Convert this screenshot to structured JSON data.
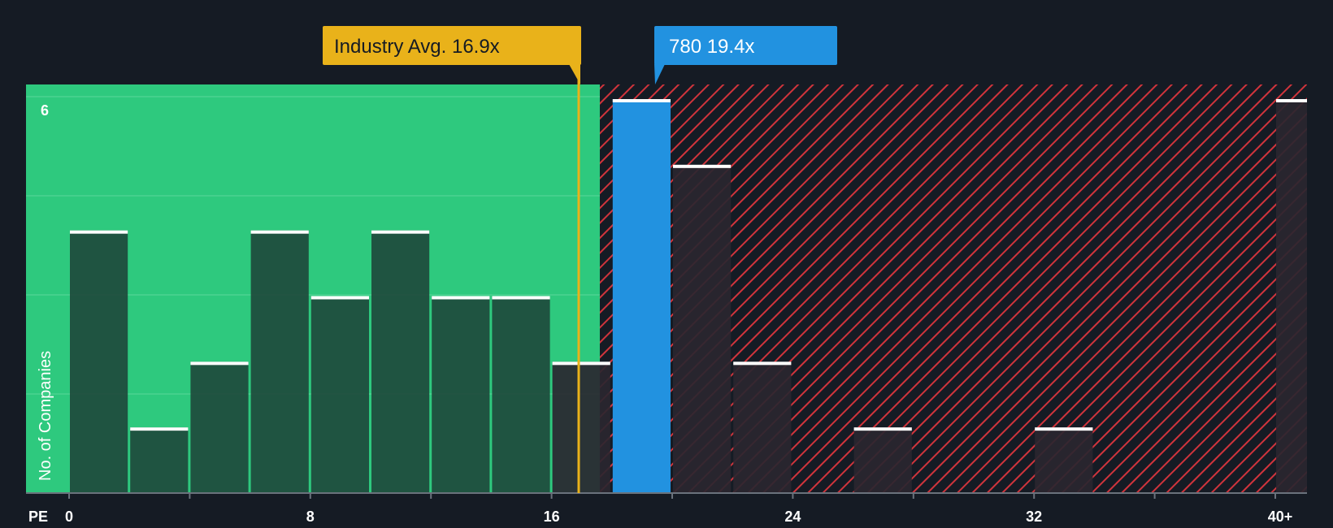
{
  "chart_data": {
    "type": "bar",
    "title": "",
    "xlabel": "PE",
    "ylabel": "No. of Companies",
    "x_tick_labels": [
      "0",
      "8",
      "16",
      "24",
      "32",
      "40+"
    ],
    "x_tick_values": [
      0,
      8,
      16,
      24,
      32,
      40
    ],
    "y_tick_labels": [
      "6"
    ],
    "y_tick_values": [
      6
    ],
    "xlim": [
      0,
      41
    ],
    "ylim": [
      0,
      6.2
    ],
    "bin_width": 2,
    "bars": [
      {
        "x": 0,
        "count": 4
      },
      {
        "x": 2,
        "count": 1
      },
      {
        "x": 4,
        "count": 2
      },
      {
        "x": 6,
        "count": 4
      },
      {
        "x": 8,
        "count": 3
      },
      {
        "x": 10,
        "count": 4
      },
      {
        "x": 12,
        "count": 3
      },
      {
        "x": 14,
        "count": 3
      },
      {
        "x": 16,
        "count": 2
      },
      {
        "x": 18,
        "count": 6,
        "highlight": true
      },
      {
        "x": 20,
        "count": 5
      },
      {
        "x": 22,
        "count": 2
      },
      {
        "x": 24,
        "count": 0
      },
      {
        "x": 26,
        "count": 1
      },
      {
        "x": 28,
        "count": 0
      },
      {
        "x": 30,
        "count": 0
      },
      {
        "x": 32,
        "count": 1
      },
      {
        "x": 34,
        "count": 0
      },
      {
        "x": 36,
        "count": 0
      },
      {
        "x": 38,
        "count": 0
      },
      {
        "x": 40,
        "count": 6
      }
    ],
    "fair_zone_end": 17.6,
    "industry_avg": {
      "value": 16.9,
      "label": "Industry Avg. 16.9x"
    },
    "company": {
      "value": 19.4,
      "label": "780 19.4x"
    },
    "colors": {
      "background": "#151b24",
      "good_zone": "#2ec97e",
      "bar_dark": "#1e4a3c",
      "bar_hatched": "#2a2630",
      "hatch_line": "#d0343c",
      "highlight": "#2292e0",
      "avg_line": "#e9b21a",
      "bar_cap": "#ffffff",
      "gridline": "#5ad89a"
    }
  }
}
